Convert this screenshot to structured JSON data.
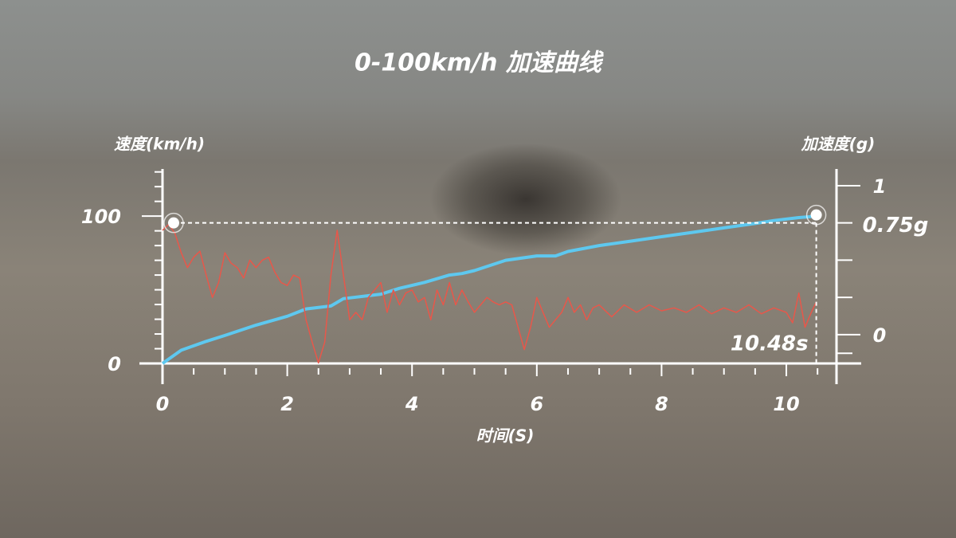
{
  "chart_data": {
    "type": "line",
    "title": "0-100km/h 加速曲线",
    "y_label": "速度(km/h)",
    "y2_label": "加速度(g)",
    "x_label": "时间(S)",
    "xlim": [
      -0.37,
      11.2
    ],
    "xticks": [
      0,
      2,
      4,
      6,
      8,
      10
    ],
    "xminorticks": [
      0.5,
      1,
      1.5,
      2.5,
      3,
      3.5,
      4.5,
      5,
      5.5,
      6.5,
      7,
      7.5,
      8.5,
      9,
      9.5,
      10.5
    ],
    "ylim": [
      0,
      132
    ],
    "yticks": [
      0,
      100
    ],
    "yminorticks": [
      10,
      20,
      30,
      40,
      50,
      60,
      70,
      80,
      90,
      110,
      120,
      130
    ],
    "y2lim": [
      -0.193,
      1.112
    ],
    "y2ticks": [
      0,
      1
    ],
    "y2minorticks": [
      -0.125,
      0.25,
      0.5,
      0.75
    ],
    "time_value": 10.48,
    "time_label": "10.48s",
    "g_value": 0.75,
    "g_label": "0.75g",
    "series": [
      {
        "name": "速度",
        "color": "#5ec8ef",
        "x": [
          0,
          0.3,
          0.7,
          1,
          1.5,
          2,
          2.3,
          2.7,
          2.9,
          3.5,
          3.8,
          4.2,
          4.6,
          4.8,
          5,
          5.5,
          6,
          6.3,
          6.5,
          7,
          7.5,
          8,
          8.5,
          9,
          9.5,
          9.8,
          10.2,
          10.48
        ],
        "values": [
          0,
          9,
          15,
          19,
          26,
          32,
          37,
          39,
          44,
          47,
          51,
          55,
          60,
          61,
          63,
          70,
          73,
          73,
          76,
          80,
          83,
          86,
          89,
          92,
          95,
          97,
          99,
          100
        ]
      },
      {
        "name": "加速度",
        "color": "#e8574a",
        "axis": "y2",
        "x": [
          0,
          0.1,
          0.2,
          0.3,
          0.4,
          0.5,
          0.6,
          0.7,
          0.8,
          0.9,
          1.0,
          1.1,
          1.2,
          1.3,
          1.4,
          1.5,
          1.6,
          1.7,
          1.8,
          1.9,
          2.0,
          2.1,
          2.2,
          2.3,
          2.4,
          2.5,
          2.6,
          2.7,
          2.8,
          2.9,
          3.0,
          3.1,
          3.2,
          3.3,
          3.4,
          3.5,
          3.6,
          3.7,
          3.8,
          3.9,
          4.0,
          4.1,
          4.2,
          4.3,
          4.4,
          4.5,
          4.6,
          4.7,
          4.8,
          4.9,
          5.0,
          5.1,
          5.2,
          5.3,
          5.4,
          5.5,
          5.6,
          5.7,
          5.8,
          5.9,
          6.0,
          6.1,
          6.2,
          6.3,
          6.4,
          6.5,
          6.6,
          6.7,
          6.8,
          6.9,
          7.0,
          7.2,
          7.4,
          7.6,
          7.8,
          8.0,
          8.2,
          8.4,
          8.6,
          8.8,
          9.0,
          9.2,
          9.4,
          9.6,
          9.8,
          10.0,
          10.1,
          10.2,
          10.3,
          10.4,
          10.48
        ],
        "values": [
          0.7,
          0.74,
          0.68,
          0.55,
          0.45,
          0.52,
          0.56,
          0.4,
          0.25,
          0.35,
          0.55,
          0.48,
          0.45,
          0.38,
          0.5,
          0.45,
          0.5,
          0.52,
          0.42,
          0.35,
          0.33,
          0.4,
          0.38,
          0.1,
          -0.05,
          -0.19,
          -0.05,
          0.4,
          0.7,
          0.4,
          0.1,
          0.15,
          0.1,
          0.25,
          0.3,
          0.35,
          0.15,
          0.3,
          0.2,
          0.28,
          0.3,
          0.22,
          0.25,
          0.1,
          0.3,
          0.2,
          0.35,
          0.2,
          0.3,
          0.22,
          0.15,
          0.2,
          0.25,
          0.22,
          0.2,
          0.22,
          0.2,
          0.05,
          -0.1,
          0.05,
          0.25,
          0.15,
          0.05,
          0.1,
          0.15,
          0.25,
          0.15,
          0.2,
          0.1,
          0.18,
          0.2,
          0.12,
          0.2,
          0.15,
          0.2,
          0.16,
          0.18,
          0.15,
          0.2,
          0.14,
          0.18,
          0.15,
          0.2,
          0.14,
          0.18,
          0.15,
          0.08,
          0.28,
          0.05,
          0.15,
          0.22
        ]
      }
    ]
  }
}
